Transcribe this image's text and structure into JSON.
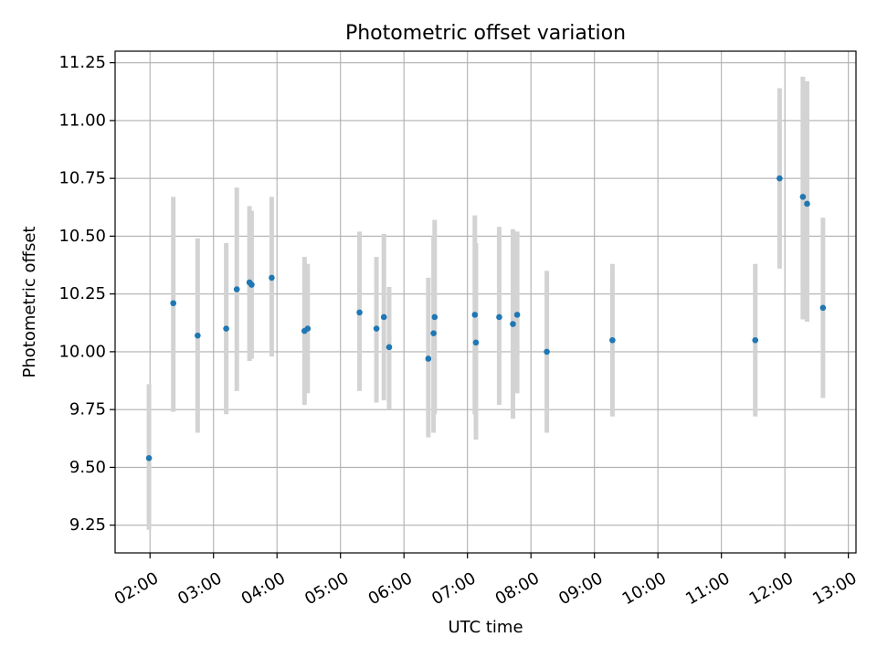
{
  "chart_data": {
    "type": "scatter",
    "title": "Photometric offset variation",
    "xlabel": "UTC time",
    "ylabel": "Photometric offset",
    "x_tick_labels": [
      "02:00",
      "03:00",
      "04:00",
      "05:00",
      "06:00",
      "07:00",
      "08:00",
      "09:00",
      "10:00",
      "11:00",
      "12:00",
      "13:00"
    ],
    "y_tick_labels": [
      "9.25",
      "9.50",
      "9.75",
      "10.00",
      "10.25",
      "10.50",
      "10.75",
      "11.00",
      "11.25"
    ],
    "x_ticks_hours": [
      2,
      3,
      4,
      5,
      6,
      7,
      8,
      9,
      10,
      11,
      12,
      13
    ],
    "y_ticks": [
      9.25,
      9.5,
      9.75,
      10.0,
      10.25,
      10.5,
      10.75,
      11.0,
      11.25
    ],
    "xlim_hours": [
      1.45,
      13.12
    ],
    "ylim": [
      9.13,
      11.3
    ],
    "grid": true,
    "colors": {
      "points": "#1f77b4",
      "error_bars": "#d3d3d3",
      "grid": "#b0b0b0"
    },
    "series": [
      {
        "points": [
          {
            "time": "01:59",
            "y": 9.54,
            "low": 9.23,
            "high": 9.86
          },
          {
            "time": "02:22",
            "y": 10.21,
            "low": 9.74,
            "high": 10.67
          },
          {
            "time": "02:45",
            "y": 10.07,
            "low": 9.65,
            "high": 10.49
          },
          {
            "time": "03:12",
            "y": 10.1,
            "low": 9.73,
            "high": 10.47
          },
          {
            "time": "03:22",
            "y": 10.27,
            "low": 9.83,
            "high": 10.71
          },
          {
            "time": "03:34",
            "y": 10.3,
            "low": 9.96,
            "high": 10.63
          },
          {
            "time": "03:36",
            "y": 10.29,
            "low": 9.97,
            "high": 10.61
          },
          {
            "time": "03:55",
            "y": 10.32,
            "low": 9.98,
            "high": 10.67
          },
          {
            "time": "04:26",
            "y": 10.09,
            "low": 9.77,
            "high": 10.41
          },
          {
            "time": "04:29",
            "y": 10.1,
            "low": 9.82,
            "high": 10.38
          },
          {
            "time": "05:18",
            "y": 10.17,
            "low": 9.83,
            "high": 10.52
          },
          {
            "time": "05:34",
            "y": 10.1,
            "low": 9.78,
            "high": 10.41
          },
          {
            "time": "05:41",
            "y": 10.15,
            "low": 9.79,
            "high": 10.51
          },
          {
            "time": "05:46",
            "y": 10.02,
            "low": 9.75,
            "high": 10.28
          },
          {
            "time": "06:23",
            "y": 9.97,
            "low": 9.63,
            "high": 10.32
          },
          {
            "time": "06:28",
            "y": 10.08,
            "low": 9.65,
            "high": 10.5
          },
          {
            "time": "06:29",
            "y": 10.15,
            "low": 9.73,
            "high": 10.57
          },
          {
            "time": "07:07",
            "y": 10.16,
            "low": 9.73,
            "high": 10.59
          },
          {
            "time": "07:08",
            "y": 10.04,
            "low": 9.62,
            "high": 10.47
          },
          {
            "time": "07:30",
            "y": 10.15,
            "low": 9.77,
            "high": 10.54
          },
          {
            "time": "07:43",
            "y": 10.12,
            "low": 9.71,
            "high": 10.53
          },
          {
            "time": "07:47",
            "y": 10.16,
            "low": 9.82,
            "high": 10.52
          },
          {
            "time": "08:15",
            "y": 10.0,
            "low": 9.65,
            "high": 10.35
          },
          {
            "time": "09:17",
            "y": 10.05,
            "low": 9.72,
            "high": 10.38
          },
          {
            "time": "11:32",
            "y": 10.05,
            "low": 9.72,
            "high": 10.38
          },
          {
            "time": "11:55",
            "y": 10.75,
            "low": 10.36,
            "high": 11.14
          },
          {
            "time": "12:17",
            "y": 10.67,
            "low": 10.14,
            "high": 11.19
          },
          {
            "time": "12:21",
            "y": 10.64,
            "low": 10.13,
            "high": 11.17
          },
          {
            "time": "12:36",
            "y": 10.19,
            "low": 9.8,
            "high": 10.58
          }
        ]
      }
    ]
  }
}
